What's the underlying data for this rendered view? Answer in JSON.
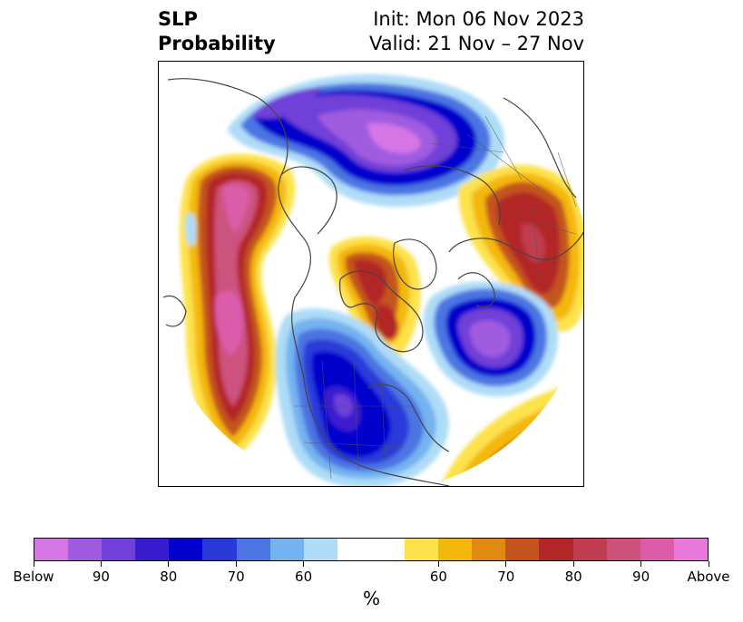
{
  "title": {
    "left_line1": "SLP",
    "left_line2": "Probability",
    "right_line1": "Init: Mon 06 Nov 2023",
    "right_line2": "Valid: 21 Nov – 27 Nov"
  },
  "colorbar": {
    "unit_label": "%",
    "colors": [
      "#d676e6",
      "#a05ce0",
      "#7040d8",
      "#3a1ccf",
      "#0000cc",
      "#2a3ad9",
      "#4c74e2",
      "#74b2f0",
      "#aedcf7",
      "#ffffff",
      "#ffffff",
      "#fde24c",
      "#f4b80a",
      "#e08a12",
      "#c4541e",
      "#b32626",
      "#c03c50",
      "#cc527e",
      "#db5ca8",
      "#e878da"
    ],
    "tick_labels": [
      "Below",
      "90",
      "80",
      "70",
      "60",
      "60",
      "70",
      "80",
      "90",
      "Above"
    ]
  }
}
